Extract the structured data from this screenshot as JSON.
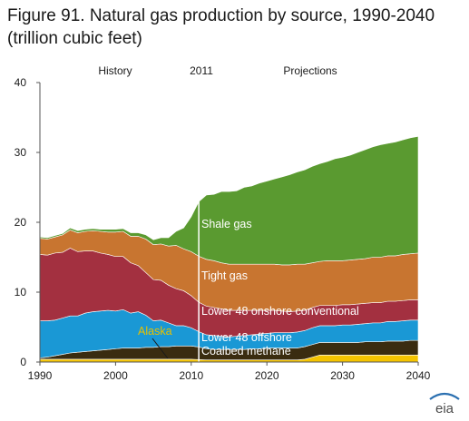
{
  "title": "Figure 91. Natural gas production by source, 1990-2040 (trillion cubic feet)",
  "logo_text": "eia",
  "chart_data": {
    "type": "area",
    "stacked": true,
    "x": [
      1990,
      1991,
      1992,
      1993,
      1994,
      1995,
      1996,
      1997,
      1998,
      1999,
      2000,
      2001,
      2002,
      2003,
      2004,
      2005,
      2006,
      2007,
      2008,
      2009,
      2010,
      2011,
      2012,
      2013,
      2014,
      2015,
      2016,
      2017,
      2018,
      2019,
      2020,
      2021,
      2022,
      2023,
      2024,
      2025,
      2026,
      2027,
      2028,
      2029,
      2030,
      2031,
      2032,
      2033,
      2034,
      2035,
      2036,
      2037,
      2038,
      2039,
      2040
    ],
    "xlim": [
      1990,
      2040
    ],
    "ylim": [
      0,
      40
    ],
    "x_ticks": [
      "1990",
      "2000",
      "2010",
      "2020",
      "2030",
      "2040"
    ],
    "y_ticks": [
      "0",
      "10",
      "20",
      "30",
      "40"
    ],
    "grid": false,
    "divider_year": 2011,
    "section_labels": {
      "history": "History",
      "divider": "2011",
      "projections": "Projections"
    },
    "series": [
      {
        "name": "Alaska",
        "color": "#f5c400",
        "values": [
          0.4,
          0.4,
          0.4,
          0.4,
          0.4,
          0.4,
          0.4,
          0.4,
          0.4,
          0.4,
          0.4,
          0.4,
          0.4,
          0.4,
          0.4,
          0.4,
          0.4,
          0.4,
          0.4,
          0.4,
          0.4,
          0.35,
          0.3,
          0.3,
          0.3,
          0.3,
          0.3,
          0.3,
          0.3,
          0.3,
          0.3,
          0.3,
          0.3,
          0.3,
          0.3,
          0.4,
          0.7,
          1.0,
          1.0,
          1.0,
          1.0,
          1.0,
          1.0,
          1.0,
          1.0,
          1.0,
          1.0,
          1.0,
          1.0,
          1.0,
          1.0
        ]
      },
      {
        "name": "Coalbed methane",
        "color": "#3a2c10",
        "values": [
          0.2,
          0.3,
          0.5,
          0.7,
          0.9,
          1.0,
          1.1,
          1.2,
          1.3,
          1.4,
          1.5,
          1.6,
          1.6,
          1.6,
          1.7,
          1.7,
          1.8,
          1.8,
          1.9,
          1.9,
          1.9,
          1.8,
          1.6,
          1.5,
          1.5,
          1.5,
          1.5,
          1.5,
          1.6,
          1.6,
          1.7,
          1.7,
          1.7,
          1.7,
          1.7,
          1.8,
          1.8,
          1.8,
          1.8,
          1.8,
          1.8,
          1.8,
          1.8,
          1.9,
          1.9,
          1.9,
          2.0,
          2.0,
          2.0,
          2.1,
          2.1
        ]
      },
      {
        "name": "Lower 48 offshore",
        "color": "#1a98d5",
        "values": [
          5.3,
          5.2,
          5.1,
          5.2,
          5.3,
          5.2,
          5.5,
          5.6,
          5.6,
          5.6,
          5.4,
          5.5,
          5.0,
          5.2,
          4.6,
          3.8,
          3.8,
          3.4,
          2.9,
          2.9,
          2.6,
          2.2,
          2.0,
          2.0,
          1.9,
          1.8,
          1.9,
          2.0,
          2.0,
          2.1,
          2.1,
          2.2,
          2.2,
          2.2,
          2.3,
          2.3,
          2.4,
          2.4,
          2.4,
          2.4,
          2.5,
          2.5,
          2.6,
          2.6,
          2.7,
          2.7,
          2.8,
          2.8,
          2.9,
          2.9,
          2.9
        ]
      },
      {
        "name": "Lower 48 onshore conventional",
        "color": "#a33040",
        "values": [
          9.5,
          9.4,
          9.6,
          9.4,
          9.7,
          9.2,
          8.9,
          8.7,
          8.3,
          8.0,
          7.8,
          7.6,
          7.2,
          6.6,
          6.1,
          5.9,
          5.7,
          5.4,
          5.3,
          5.0,
          4.6,
          4.2,
          4.1,
          4.0,
          3.9,
          3.8,
          3.7,
          3.6,
          3.5,
          3.4,
          3.3,
          3.2,
          3.1,
          3.0,
          3.0,
          2.9,
          2.9,
          2.9,
          2.9,
          2.9,
          2.9,
          2.9,
          2.9,
          2.9,
          2.9,
          2.9,
          2.9,
          2.9,
          2.9,
          2.9,
          2.9
        ]
      },
      {
        "name": "Tight gas",
        "color": "#c87530",
        "values": [
          2.3,
          2.3,
          2.3,
          2.5,
          2.6,
          2.7,
          2.8,
          2.9,
          3.1,
          3.2,
          3.5,
          3.6,
          3.8,
          4.2,
          4.8,
          5.0,
          5.2,
          5.6,
          6.2,
          6.0,
          6.3,
          6.6,
          6.7,
          6.7,
          6.6,
          6.6,
          6.6,
          6.6,
          6.6,
          6.6,
          6.6,
          6.6,
          6.6,
          6.7,
          6.7,
          6.6,
          6.4,
          6.3,
          6.4,
          6.4,
          6.3,
          6.4,
          6.4,
          6.4,
          6.5,
          6.5,
          6.5,
          6.5,
          6.6,
          6.6,
          6.7
        ]
      },
      {
        "name": "Shale gas",
        "color": "#5a9a30",
        "values": [
          0.2,
          0.2,
          0.2,
          0.2,
          0.3,
          0.3,
          0.3,
          0.3,
          0.3,
          0.4,
          0.4,
          0.4,
          0.5,
          0.5,
          0.6,
          0.7,
          0.9,
          1.2,
          2.0,
          3.0,
          5.0,
          7.8,
          9.2,
          9.5,
          10.2,
          10.4,
          10.5,
          11.0,
          11.2,
          11.6,
          11.9,
          12.2,
          12.6,
          12.9,
          13.2,
          13.5,
          13.8,
          14.0,
          14.2,
          14.6,
          14.8,
          15.0,
          15.3,
          15.6,
          15.8,
          16.1,
          16.1,
          16.3,
          16.4,
          16.6,
          16.7
        ]
      }
    ]
  }
}
